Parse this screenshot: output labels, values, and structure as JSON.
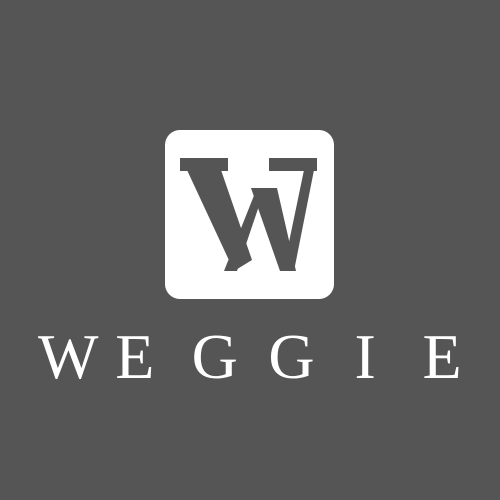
{
  "logo": {
    "monogram": "W",
    "icon": "w-monogram-icon",
    "colors": {
      "background": "#555555",
      "tile": "#ffffff",
      "monogram": "#555555",
      "wordmark": "#ffffff"
    }
  },
  "wordmark": {
    "text": "WEGGIE",
    "letters": [
      "W",
      "E",
      "G",
      "G",
      "I",
      "E"
    ]
  }
}
